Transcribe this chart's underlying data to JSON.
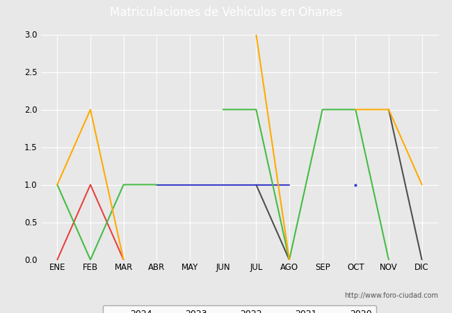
{
  "title": "Matriculaciones de Vehiculos en Ohanes",
  "months": [
    "ENE",
    "FEB",
    "MAR",
    "ABR",
    "MAY",
    "JUN",
    "JUL",
    "AGO",
    "SEP",
    "OCT",
    "NOV",
    "DIC"
  ],
  "series": {
    "2024": [
      0,
      1,
      0,
      null,
      null,
      null,
      null,
      null,
      null,
      null,
      null,
      null
    ],
    "2023": [
      null,
      null,
      null,
      null,
      null,
      null,
      1,
      0,
      null,
      null,
      2,
      0
    ],
    "2022": [
      null,
      null,
      null,
      1,
      1,
      1,
      1,
      1,
      null,
      1,
      null,
      null
    ],
    "2021": [
      1,
      0,
      1,
      1,
      null,
      2,
      2,
      0,
      2,
      2,
      0,
      null
    ],
    "2020": [
      1,
      2,
      0,
      null,
      null,
      null,
      3,
      0,
      null,
      2,
      2,
      1
    ]
  },
  "colors": {
    "2024": "#e8413e",
    "2023": "#4d4d4d",
    "2022": "#3b3bcc",
    "2021": "#44bb44",
    "2020": "#ffaa00"
  },
  "ylim": [
    0,
    3.0
  ],
  "yticks": [
    0.0,
    0.5,
    1.0,
    1.5,
    2.0,
    2.5,
    3.0
  ],
  "bg_color": "#e8e8e8",
  "plot_bg_color": "#e8e8e8",
  "title_bg_color": "#4da6d4",
  "title_color": "#ffffff",
  "watermark": "http://www.foro-ciudad.com",
  "footer_bg_color": "#4da6d4"
}
